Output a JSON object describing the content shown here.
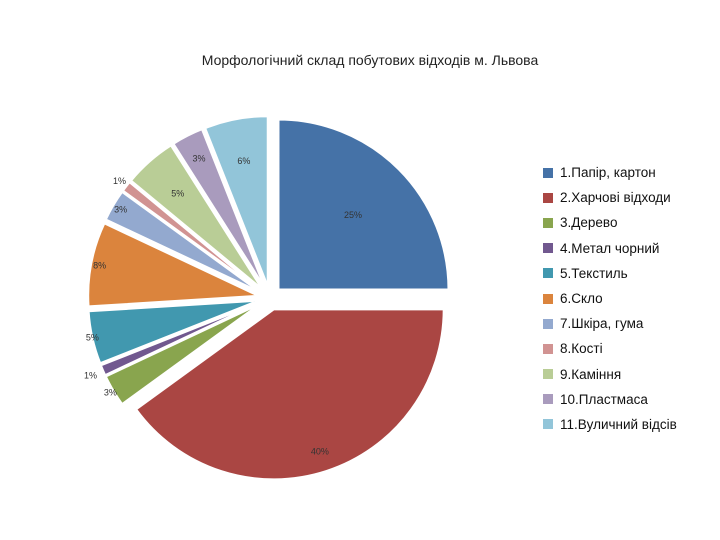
{
  "chart_data": {
    "type": "pie",
    "title": "Морфологічний склад побутових відходів м. Львова",
    "legend_position": "right",
    "exploded": true,
    "slices": [
      {
        "label": "1.Папір, картон",
        "value": 25,
        "display": "25%",
        "color": "#4572a7"
      },
      {
        "label": "2.Харчові відходи",
        "value": 40,
        "display": "40%",
        "color": "#aa4643"
      },
      {
        "label": "3.Дерево",
        "value": 3,
        "display": "3%",
        "color": "#89a54e"
      },
      {
        "label": "4.Метал чорний",
        "value": 1,
        "display": "1%",
        "color": "#71588f"
      },
      {
        "label": "5.Текстиль",
        "value": 5,
        "display": "5%",
        "color": "#4198af"
      },
      {
        "label": "6.Скло",
        "value": 8,
        "display": "8%",
        "color": "#db843d"
      },
      {
        "label": "7.Шкіра, гума",
        "value": 3,
        "display": "3%",
        "color": "#93a9cf"
      },
      {
        "label": "8.Кості",
        "value": 1,
        "display": "1%",
        "color": "#d19392"
      },
      {
        "label": "9.Каміння",
        "value": 5,
        "display": "5%",
        "color": "#b9cd96"
      },
      {
        "label": "10.Пластмаса",
        "value": 3,
        "display": "3%",
        "color": "#a99bbd"
      },
      {
        "label": "11.Вуличний відсів",
        "value": 6,
        "display": "6%",
        "color": "#92c5d9"
      }
    ]
  }
}
